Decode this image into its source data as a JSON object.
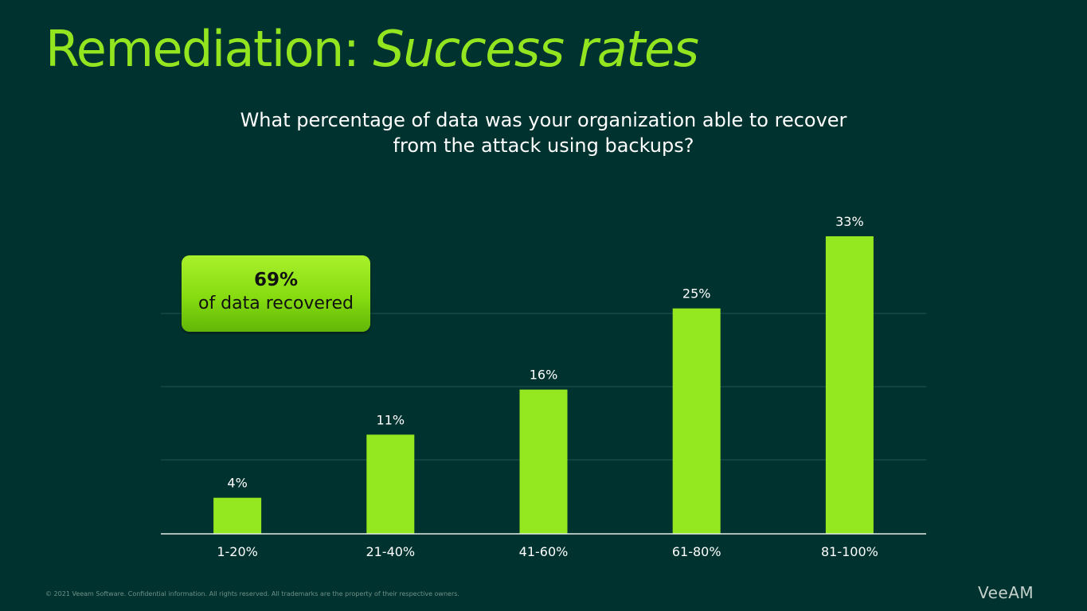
{
  "slide": {
    "title_main": "Remediation: ",
    "title_emphasis": "Success rates",
    "question_line1": "What percentage of data was your organization able to recover",
    "question_line2": "from the attack using backups?",
    "callout": {
      "value": "69%",
      "label": "of data recovered"
    },
    "footer_note": "© 2021 Veeam Software. Confidential information. All rights reserved. All trademarks are the property of their respective owners.",
    "logo_text": "VeeAM"
  },
  "colors": {
    "background": "#00332f",
    "accent": "#93e61f",
    "bar": "#93e81f",
    "gridline": "#1f5650",
    "axis": "#e6ece9",
    "text": "#ffffff"
  },
  "chart_data": {
    "type": "bar",
    "categories": [
      "1-20%",
      "21-40%",
      "41-60%",
      "61-80%",
      "81-100%"
    ],
    "values": [
      4,
      11,
      16,
      25,
      33
    ],
    "value_labels": [
      "4%",
      "11%",
      "16%",
      "25%",
      "33%"
    ],
    "title": "What percentage of data was your organization able to recover from the attack using backups?",
    "xlabel": "",
    "ylabel": "",
    "ylim": [
      0,
      33
    ],
    "grid": true,
    "legend": "none"
  }
}
